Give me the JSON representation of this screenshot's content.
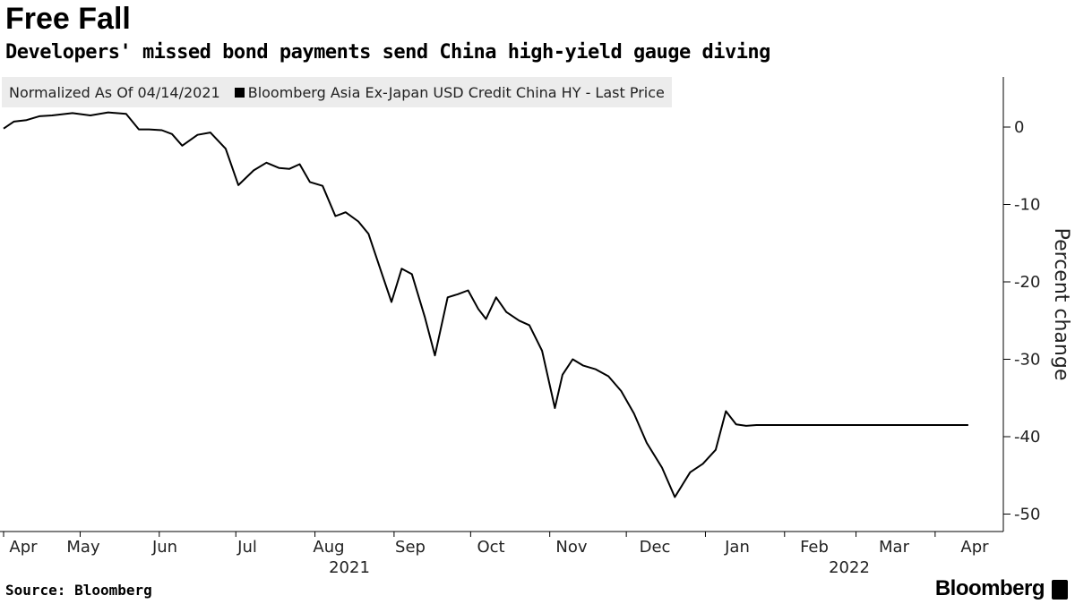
{
  "header": {
    "title": "Free Fall",
    "subtitle": "Developers' missed bond payments send China high-yield gauge diving"
  },
  "legend": {
    "note": "Normalized As Of 04/14/2021",
    "series_label": "Bloomberg Asia Ex-Japan USD Credit China HY - Last Price"
  },
  "footer": {
    "source": "Source: Bloomberg",
    "brand": "Bloomberg",
    "brand_icon": "bloomberg-terminal-icon"
  },
  "colors": {
    "line": "#000000",
    "legend_bg": "#ececec",
    "background": "#ffffff"
  },
  "chart_data": {
    "type": "line",
    "title": "Free Fall",
    "subtitle": "Developers' missed bond payments send China high-yield gauge diving",
    "ylabel": "Percent change",
    "ylim": [
      -50,
      6
    ],
    "y_ticks": [
      0,
      -10,
      -20,
      -30,
      -40,
      -50
    ],
    "y_axis_side": "right",
    "x_ticks": [
      "Apr",
      "May",
      "Jun",
      "Jul",
      "Aug",
      "Sep",
      "Oct",
      "Nov",
      "Dec",
      "Jan",
      "Feb",
      "Mar",
      "Apr"
    ],
    "x_year_labels": [
      "2021",
      "2022"
    ],
    "xlim": [
      "2021-04-01",
      "2022-04-20"
    ],
    "grid": false,
    "legend_position": "top-left",
    "series": [
      {
        "name": "Bloomberg Asia Ex-Japan USD Credit China HY - Last Price",
        "x": [
          "2021-04-01",
          "2021-04-05",
          "2021-04-10",
          "2021-04-15",
          "2021-04-20",
          "2021-04-28",
          "2021-05-05",
          "2021-05-12",
          "2021-05-19",
          "2021-05-24",
          "2021-05-28",
          "2021-06-02",
          "2021-06-06",
          "2021-06-10",
          "2021-06-16",
          "2021-06-21",
          "2021-06-27",
          "2021-07-02",
          "2021-07-08",
          "2021-07-13",
          "2021-07-18",
          "2021-07-22",
          "2021-07-26",
          "2021-07-30",
          "2021-08-04",
          "2021-08-09",
          "2021-08-13",
          "2021-08-18",
          "2021-08-22",
          "2021-08-27",
          "2021-08-31",
          "2021-09-04",
          "2021-09-08",
          "2021-09-13",
          "2021-09-17",
          "2021-09-22",
          "2021-09-26",
          "2021-09-30",
          "2021-10-04",
          "2021-10-07",
          "2021-10-11",
          "2021-10-15",
          "2021-10-20",
          "2021-10-24",
          "2021-10-29",
          "2021-11-03",
          "2021-11-06",
          "2021-11-10",
          "2021-11-14",
          "2021-11-19",
          "2021-11-24",
          "2021-11-29",
          "2021-12-04",
          "2021-12-09",
          "2021-12-15",
          "2021-12-20",
          "2021-12-26",
          "2021-12-31",
          "2022-01-05",
          "2022-01-09",
          "2022-01-13",
          "2022-01-17",
          "2022-01-21",
          "2022-01-26",
          "2022-01-31",
          "2022-02-05",
          "2022-02-10",
          "2022-02-15",
          "2022-02-20",
          "2022-02-24",
          "2022-02-28",
          "2022-03-04",
          "2022-03-07",
          "2022-03-12",
          "2022-03-17",
          "2022-03-21",
          "2022-03-25",
          "2022-03-30",
          "2022-04-03",
          "2022-04-08",
          "2022-04-14"
        ],
        "values": [
          -0.2,
          0.7,
          0.9,
          1.4,
          1.5,
          1.8,
          1.5,
          1.9,
          1.7,
          -0.3,
          -0.3,
          -0.4,
          -0.9,
          -2.4,
          -1.0,
          -0.7,
          -2.8,
          -7.5,
          -5.6,
          -4.6,
          -5.3,
          -5.4,
          -4.8,
          -7.1,
          -7.6,
          -11.5,
          -11.0,
          -12.2,
          -13.8,
          -18.7,
          -22.6,
          -18.3,
          -19.0,
          -24.5,
          -29.5,
          -22.0,
          -21.6,
          -21.1,
          -23.5,
          -24.8,
          -22.0,
          -23.9,
          -25.0,
          -25.6,
          -28.9,
          -36.3,
          -32.0,
          -30.0,
          -30.8,
          -31.3,
          -32.2,
          -34.1,
          -37.0,
          -40.8,
          -44.0,
          -47.8,
          -44.6,
          -43.5,
          -41.7,
          -36.7,
          -38.4,
          -38.6,
          -38.5,
          -38.5,
          -38.5,
          -38.5,
          -38.5,
          -38.5,
          -38.5,
          -38.5,
          -38.5,
          -38.5,
          -38.5,
          -38.5,
          -38.5,
          -38.5,
          -38.5,
          -38.5,
          -38.5,
          -38.5,
          -38.5
        ]
      }
    ]
  }
}
